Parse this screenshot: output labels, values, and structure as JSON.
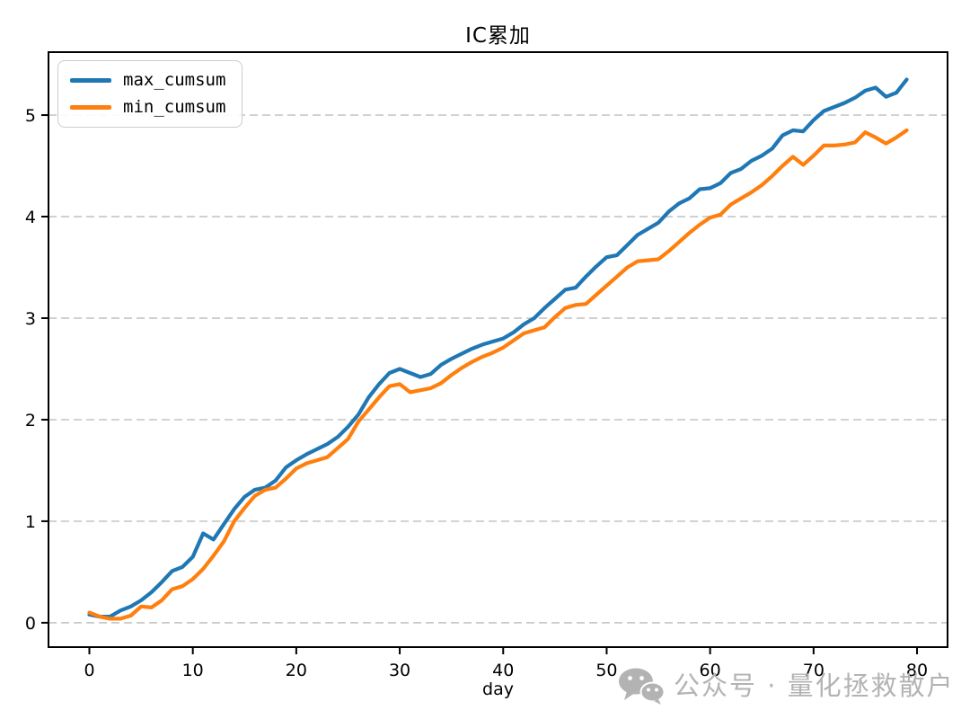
{
  "title": "IC累加",
  "colors": {
    "series_max": "#1f77b4",
    "series_min": "#ff7f0e",
    "grid": "#c9c9c9",
    "spine": "#000000",
    "tick_label": "#000000",
    "watermark": "#b3b3b3",
    "background": "#ffffff"
  },
  "watermark": {
    "icon": "wechat-icon",
    "text": "公众号 · 量化拯救散户"
  },
  "chart_data": {
    "type": "line",
    "title": "IC累加",
    "xlabel": "day",
    "ylabel": "",
    "x_min": 0,
    "x_step": 1,
    "x_ticks": [
      0,
      10,
      20,
      30,
      40,
      50,
      60,
      70,
      80
    ],
    "y_ticks": [
      0,
      1,
      2,
      3,
      4,
      5
    ],
    "xlim": [
      -3.95,
      82.95
    ],
    "ylim": [
      -0.24,
      5.62
    ],
    "grid": "horizontal-dashed",
    "legend_position": "upper-left",
    "series": [
      {
        "name": "max_cumsum",
        "color": "#1f77b4",
        "values": [
          0.08,
          0.06,
          0.06,
          0.12,
          0.16,
          0.22,
          0.3,
          0.4,
          0.51,
          0.55,
          0.65,
          0.88,
          0.82,
          0.97,
          1.12,
          1.24,
          1.31,
          1.33,
          1.4,
          1.53,
          1.6,
          1.66,
          1.71,
          1.76,
          1.83,
          1.93,
          2.05,
          2.22,
          2.35,
          2.46,
          2.5,
          2.46,
          2.42,
          2.45,
          2.54,
          2.6,
          2.65,
          2.7,
          2.74,
          2.77,
          2.8,
          2.86,
          2.94,
          3.0,
          3.1,
          3.19,
          3.28,
          3.3,
          3.41,
          3.51,
          3.6,
          3.62,
          3.72,
          3.82,
          3.88,
          3.94,
          4.05,
          4.13,
          4.18,
          4.27,
          4.28,
          4.33,
          4.43,
          4.47,
          4.55,
          4.6,
          4.67,
          4.8,
          4.85,
          4.84,
          4.95,
          5.04,
          5.08,
          5.12,
          5.17,
          5.24,
          5.27,
          5.18,
          5.22,
          5.35
        ]
      },
      {
        "name": "min_cumsum",
        "color": "#ff7f0e",
        "values": [
          0.1,
          0.06,
          0.04,
          0.04,
          0.07,
          0.16,
          0.15,
          0.22,
          0.33,
          0.36,
          0.43,
          0.53,
          0.66,
          0.8,
          1.0,
          1.13,
          1.25,
          1.31,
          1.33,
          1.42,
          1.52,
          1.57,
          1.6,
          1.63,
          1.72,
          1.81,
          1.98,
          2.1,
          2.22,
          2.33,
          2.35,
          2.27,
          2.29,
          2.31,
          2.36,
          2.44,
          2.51,
          2.57,
          2.62,
          2.66,
          2.71,
          2.78,
          2.85,
          2.88,
          2.91,
          3.01,
          3.1,
          3.13,
          3.14,
          3.23,
          3.32,
          3.41,
          3.5,
          3.56,
          3.57,
          3.58,
          3.66,
          3.75,
          3.84,
          3.92,
          3.99,
          4.02,
          4.12,
          4.18,
          4.24,
          4.31,
          4.4,
          4.5,
          4.59,
          4.51,
          4.6,
          4.7,
          4.7,
          4.71,
          4.73,
          4.83,
          4.78,
          4.72,
          4.78,
          4.85
        ]
      }
    ]
  }
}
